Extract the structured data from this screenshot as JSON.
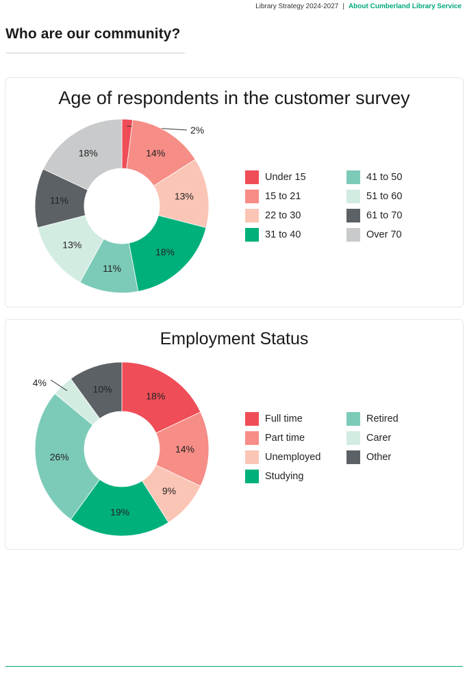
{
  "header": {
    "document": "Library Strategy 2024-2027",
    "separator": "|",
    "section": "About Cumberland Library Service"
  },
  "page_title": "Who are our community?",
  "chart_data": [
    {
      "type": "pie",
      "variant": "donut",
      "title": "Age of respondents in the customer survey",
      "unit": "%",
      "legend_position": "right",
      "categories": [
        "Under 15",
        "15 to 21",
        "22 to 30",
        "31 to 40",
        "41 to 50",
        "51 to 60",
        "61 to 70",
        "Over 70"
      ],
      "values": [
        2,
        14,
        13,
        18,
        11,
        13,
        11,
        18
      ],
      "labels": [
        "2%",
        "14%",
        "13%",
        "18%",
        "11%",
        "13%",
        "11%",
        "18%"
      ],
      "colors": [
        "#ef4d57",
        "#f68d86",
        "#fbc5b6",
        "#00b07b",
        "#7ccbb9",
        "#d3ece2",
        "#5c6166",
        "#c9cacb"
      ]
    },
    {
      "type": "pie",
      "variant": "donut",
      "title": "Employment Status",
      "unit": "%",
      "legend_position": "right",
      "categories": [
        "Full time",
        "Part time",
        "Unemployed",
        "Studying",
        "Retired",
        "Carer",
        "Other"
      ],
      "values": [
        18,
        14,
        9,
        19,
        26,
        4,
        10
      ],
      "labels": [
        "18%",
        "14%",
        "9%",
        "19%",
        "26%",
        "4%",
        "10%"
      ],
      "colors": [
        "#ef4d57",
        "#f68d86",
        "#fbc5b6",
        "#00b07b",
        "#7ccbb9",
        "#d3ece2",
        "#5c6166"
      ]
    }
  ]
}
